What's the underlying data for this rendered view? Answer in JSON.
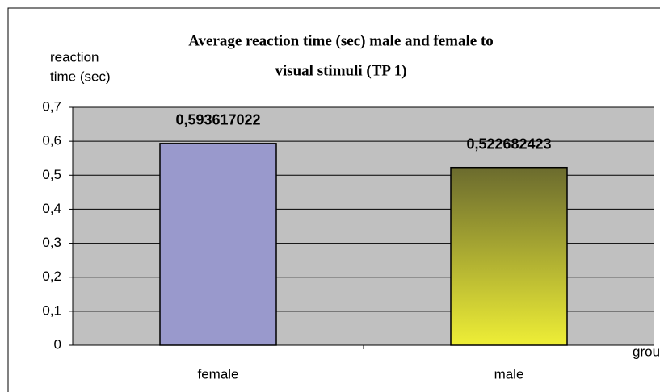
{
  "chart_data": {
    "type": "bar",
    "title": [
      "Average reaction time (sec) male and female  to",
      "visual  stimuli (TP 1)"
    ],
    "ylabel": [
      "reaction",
      "time (sec)"
    ],
    "xlabel": "group",
    "categories": [
      "female",
      "male"
    ],
    "values": [
      0.593617022,
      0.522682423
    ],
    "value_labels": [
      "0,593617022",
      "0,522682423"
    ],
    "colors": [
      "#9999cc",
      {
        "from": "#6b6b2e",
        "to": "#eeee36"
      }
    ],
    "ylim": [
      0,
      0.7
    ],
    "yticks": [
      0,
      {
        "value": 0.1,
        "label": "0,1"
      },
      {
        "value": 0.2,
        "label": "0,2"
      },
      {
        "value": 0.3,
        "label": "0,3"
      },
      {
        "value": 0.4,
        "label": "0,4"
      },
      {
        "value": 0.5,
        "label": "0,5"
      },
      {
        "value": 0.6,
        "label": "0,6"
      },
      {
        "value": 0.7,
        "label": "0,7"
      }
    ],
    "grid": true
  }
}
